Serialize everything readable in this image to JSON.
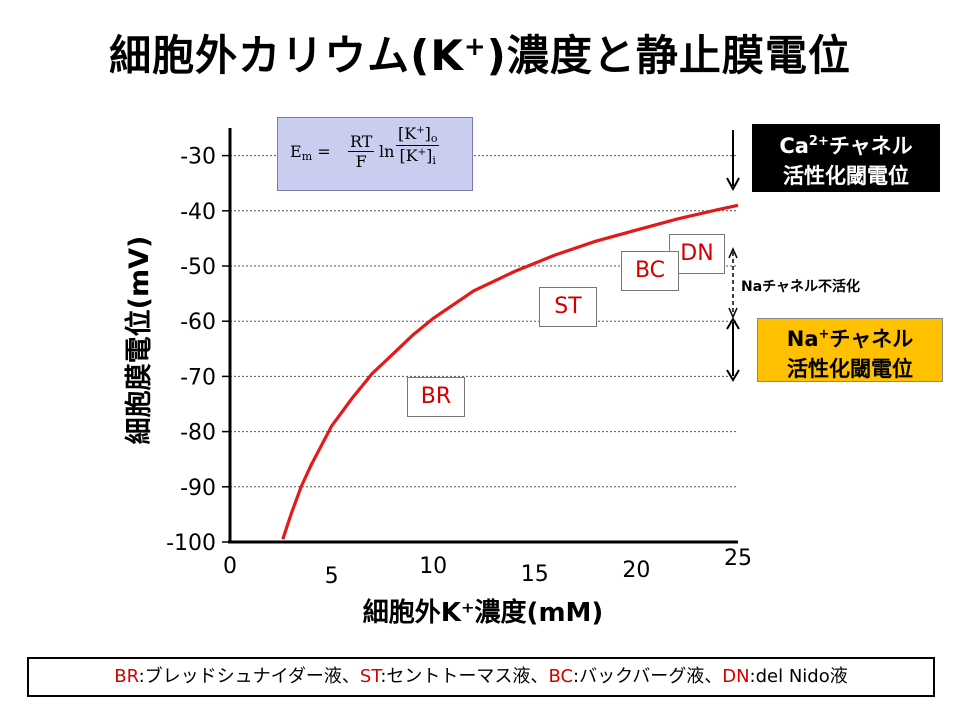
{
  "title": {
    "prefix": "細胞外カリウム(K",
    "sup": "+",
    "suffix": ")濃度と静止膜電位"
  },
  "formula": {
    "lhs": "E",
    "lhs_sub": "m",
    "eq": "=",
    "f1_num": "RT",
    "f1_den": "F",
    "ln": "ln",
    "f2_num": "[K",
    "f2_num_sup": "+",
    "f2_num_close": "]",
    "f2_num_sub": "o",
    "f2_den": "[K",
    "f2_den_sup": "+",
    "f2_den_close": "]",
    "f2_den_sub": "i"
  },
  "chart_data": {
    "type": "line",
    "xlabel": "細胞外K⁺濃度(mM)",
    "ylabel": "細胞膜電位(mV)",
    "xlim": [
      0,
      25
    ],
    "ylim": [
      -100,
      -25
    ],
    "x_ticks": [
      "0",
      "5",
      "10",
      "15",
      "20",
      "25"
    ],
    "y_ticks": [
      "-30",
      "-40",
      "-50",
      "-60",
      "-70",
      "-80",
      "-90",
      "-100"
    ],
    "x_tick_values": [
      0,
      5,
      10,
      15,
      20,
      25
    ],
    "y_tick_values": [
      -30,
      -40,
      -50,
      -60,
      -70,
      -80,
      -90,
      -100
    ],
    "gridlines": [
      -30,
      -40,
      -50,
      -60,
      -70,
      -80,
      -90
    ],
    "series": [
      {
        "name": "Em",
        "color": "#e31a1a",
        "x": [
          2.6,
          3,
          3.5,
          4,
          5,
          6,
          7,
          8,
          9,
          10,
          12,
          14,
          16,
          18,
          20,
          22,
          24,
          25
        ],
        "y": [
          -99.5,
          -95,
          -90,
          -86,
          -79,
          -74,
          -69.5,
          -66,
          -62.5,
          -59.5,
          -54.5,
          -51,
          -48,
          -45.5,
          -43.5,
          -41.5,
          -39.8,
          -39
        ]
      }
    ],
    "labels": [
      {
        "text": "BR",
        "x": 9.5,
        "y": -73
      },
      {
        "text": "ST",
        "x": 15.2,
        "y": -58
      },
      {
        "text": "BC",
        "x": 19.8,
        "y": -50
      },
      {
        "text": "DN",
        "x": 21.8,
        "y": -48
      }
    ]
  },
  "ca_box": {
    "line1_a": "Ca",
    "line1_sup": "2+",
    "line1_b": "チャネル",
    "line2": "活性化閾電位"
  },
  "na_box": {
    "line1_a": "Na",
    "line1_sup": "+",
    "line1_b": "チャネル",
    "line2": "活性化閾電位"
  },
  "na_inactivation": "Naチャネル不活化",
  "footer": {
    "br_key": "BR",
    "br_text": ":ブレッドシュナイダー液、",
    "st_key": "ST",
    "st_text": ":セントトーマス液、",
    "bc_key": "BC",
    "bc_text": ":バックバーグ液、",
    "dn_key": "DN",
    "dn_text": ":del Nido液"
  },
  "colors": {
    "curve": "#e31a1a",
    "na_box": "#ffc000",
    "formula_box": "#c9cdf0"
  }
}
